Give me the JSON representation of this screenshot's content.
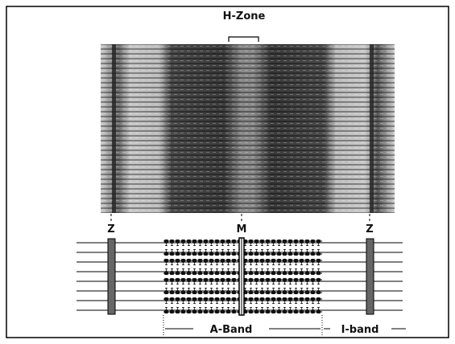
{
  "header": {
    "h_zone": "H-Zone"
  },
  "labels": {
    "z_left": "Z",
    "m": "M",
    "z_right": "Z",
    "a_band": "A-Band",
    "i_band": "I-band"
  }
}
